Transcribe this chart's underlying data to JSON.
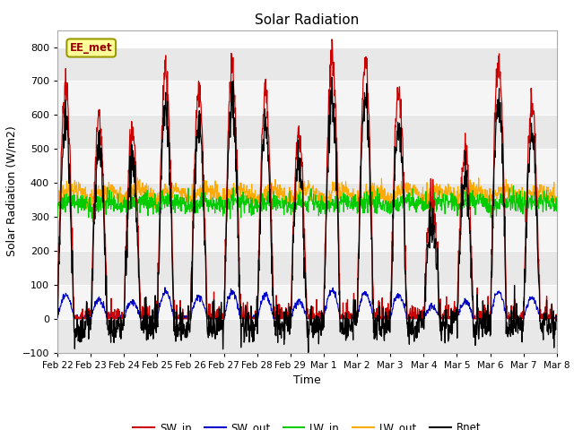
{
  "title": "Solar Radiation",
  "xlabel": "Time",
  "ylabel": "Solar Radiation (W/m2)",
  "ylim": [
    -100,
    850
  ],
  "yticks": [
    -100,
    0,
    100,
    200,
    300,
    400,
    500,
    600,
    700,
    800
  ],
  "annotation": "EE_met",
  "x_tick_labels": [
    "Feb 22",
    "Feb 23",
    "Feb 24",
    "Feb 25",
    "Feb 26",
    "Feb 27",
    "Feb 28",
    "Feb 29",
    "Mar 1",
    "Mar 2",
    "Mar 3",
    "Mar 4",
    "Mar 5",
    "Mar 6",
    "Mar 7",
    "Mar 8"
  ],
  "num_days": 15,
  "points_per_day": 96,
  "series_colors": {
    "SW_in": "#cc0000",
    "SW_out": "#0000cc",
    "LW_in": "#00cc00",
    "LW_out": "#ffaa00",
    "Rnet": "#000000"
  },
  "legend_labels": [
    "SW_in",
    "SW_out",
    "LW_in",
    "LW_out",
    "Rnet"
  ],
  "fig_facecolor": "#ffffff",
  "plot_facecolor": "#ffffff",
  "band_color_dark": "#e8e8e8",
  "band_color_light": "#f5f5f5"
}
